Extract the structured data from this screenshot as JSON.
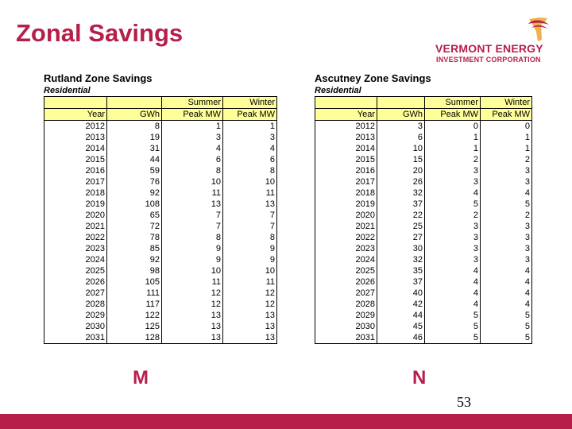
{
  "title": "Zonal Savings",
  "logo": {
    "line1": "VERMONT ENERGY",
    "line2": "INVESTMENT CORPORATION",
    "icon": "vermont-map-flame-icon"
  },
  "colors": {
    "brand": "#b51f4a",
    "header_fill": "#ffff99"
  },
  "headers": {
    "row1": [
      "",
      "",
      "Summer",
      "Winter"
    ],
    "row2": [
      "Year",
      "GWh",
      "Peak MW",
      "Peak MW"
    ]
  },
  "rutland": {
    "title": "Rutland Zone Savings",
    "subtitle": "Residential",
    "rows": [
      [
        "2012",
        "8",
        "1",
        "1"
      ],
      [
        "2013",
        "19",
        "3",
        "3"
      ],
      [
        "2014",
        "31",
        "4",
        "4"
      ],
      [
        "2015",
        "44",
        "6",
        "6"
      ],
      [
        "2016",
        "59",
        "8",
        "8"
      ],
      [
        "2017",
        "76",
        "10",
        "10"
      ],
      [
        "2018",
        "92",
        "11",
        "11"
      ],
      [
        "2019",
        "108",
        "13",
        "13"
      ],
      [
        "2020",
        "65",
        "7",
        "7"
      ],
      [
        "2021",
        "72",
        "7",
        "7"
      ],
      [
        "2022",
        "78",
        "8",
        "8"
      ],
      [
        "2023",
        "85",
        "9",
        "9"
      ],
      [
        "2024",
        "92",
        "9",
        "9"
      ],
      [
        "2025",
        "98",
        "10",
        "10"
      ],
      [
        "2026",
        "105",
        "11",
        "11"
      ],
      [
        "2027",
        "111",
        "12",
        "12"
      ],
      [
        "2028",
        "117",
        "12",
        "12"
      ],
      [
        "2029",
        "122",
        "13",
        "13"
      ],
      [
        "2030",
        "125",
        "13",
        "13"
      ],
      [
        "2031",
        "128",
        "13",
        "13"
      ]
    ]
  },
  "ascutney": {
    "title": "Ascutney Zone Savings",
    "subtitle": "Residential",
    "rows": [
      [
        "2012",
        "3",
        "0",
        "0"
      ],
      [
        "2013",
        "6",
        "1",
        "1"
      ],
      [
        "2014",
        "10",
        "1",
        "1"
      ],
      [
        "2015",
        "15",
        "2",
        "2"
      ],
      [
        "2016",
        "20",
        "3",
        "3"
      ],
      [
        "2017",
        "26",
        "3",
        "3"
      ],
      [
        "2018",
        "32",
        "4",
        "4"
      ],
      [
        "2019",
        "37",
        "5",
        "5"
      ],
      [
        "2020",
        "22",
        "2",
        "2"
      ],
      [
        "2021",
        "25",
        "3",
        "3"
      ],
      [
        "2022",
        "27",
        "3",
        "3"
      ],
      [
        "2023",
        "30",
        "3",
        "3"
      ],
      [
        "2024",
        "32",
        "3",
        "3"
      ],
      [
        "2025",
        "35",
        "4",
        "4"
      ],
      [
        "2026",
        "37",
        "4",
        "4"
      ],
      [
        "2027",
        "40",
        "4",
        "4"
      ],
      [
        "2028",
        "42",
        "4",
        "4"
      ],
      [
        "2029",
        "44",
        "5",
        "5"
      ],
      [
        "2030",
        "45",
        "5",
        "5"
      ],
      [
        "2031",
        "46",
        "5",
        "5"
      ]
    ]
  },
  "labels": {
    "left": "M",
    "right": "N"
  },
  "page_number": "53"
}
